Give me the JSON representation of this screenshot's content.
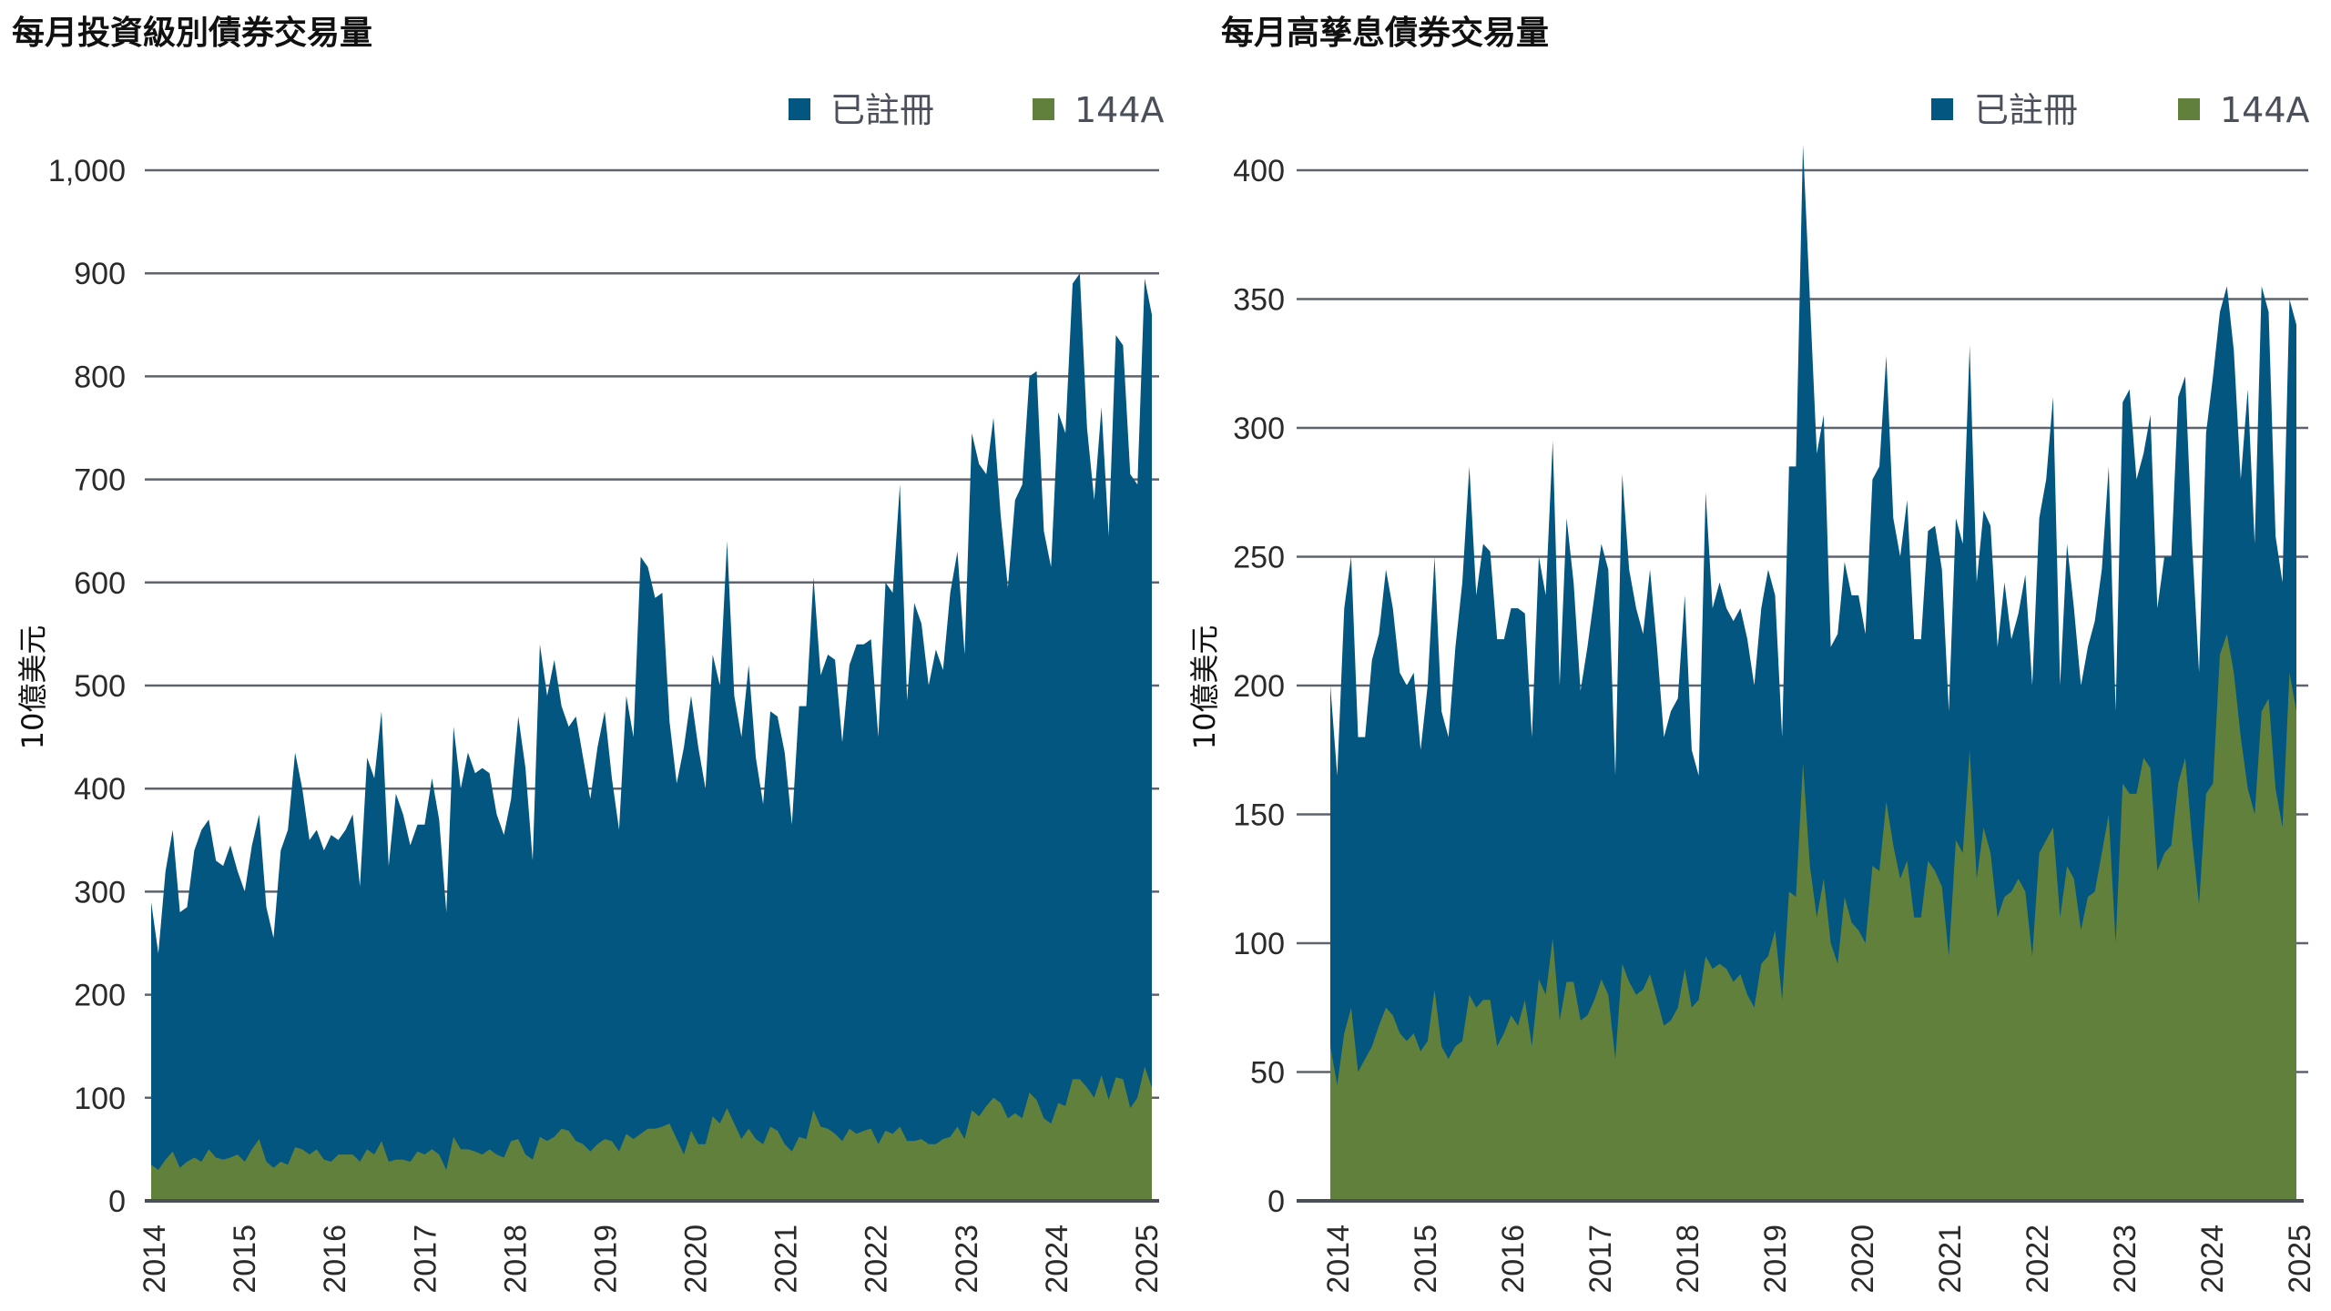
{
  "colors": {
    "registered": "#02567f",
    "a144": "#61803b",
    "grid": "#5f636b"
  },
  "chart_data": [
    {
      "type": "area",
      "stacked": true,
      "title": "每月投資級別債券交易量",
      "ylabel": "10億美元",
      "ylim": [
        0,
        1000
      ],
      "yticks": [
        0,
        100,
        200,
        300,
        400,
        500,
        600,
        700,
        800,
        900,
        1000
      ],
      "ytick_labels": [
        "0",
        "100",
        "200",
        "300",
        "400",
        "500",
        "600",
        "700",
        "800",
        "900",
        "1,000"
      ],
      "xtick_labels": [
        "2014",
        "2015",
        "2016",
        "2017",
        "2018",
        "2019",
        "2020",
        "2021",
        "2022",
        "2023",
        "2024",
        "2025"
      ],
      "frequency": "monthly",
      "grid": true,
      "legend_position": "top-right",
      "series": [
        {
          "name": "已註冊",
          "color": "#02567f",
          "values": [
            255,
            210,
            280,
            312,
            248,
            247,
            298,
            322,
            320,
            288,
            285,
            303,
            275,
            262,
            295,
            315,
            247,
            223,
            302,
            325,
            383,
            350,
            305,
            310,
            300,
            317,
            305,
            315,
            330,
            267,
            380,
            365,
            417,
            287,
            355,
            335,
            307,
            317,
            320,
            360,
            325,
            250,
            398,
            350,
            385,
            367,
            375,
            365,
            330,
            313,
            332,
            410,
            375,
            290,
            478,
            432,
            463,
            410,
            392,
            412,
            375,
            342,
            385,
            415,
            352,
            312,
            425,
            390,
            560,
            545,
            515,
            518,
            390,
            345,
            395,
            422,
            385,
            345,
            448,
            425,
            550,
            415,
            390,
            450,
            370,
            330,
            403,
            402,
            380,
            317,
            418,
            420,
            517,
            438,
            460,
            460,
            387,
            450,
            475,
            472,
            475,
            395,
            532,
            525,
            623,
            427,
            522,
            500,
            445,
            480,
            455,
            528,
            558,
            470,
            657,
            633,
            613,
            660,
            570,
            515,
            595,
            615,
            695,
            707,
            570,
            540,
            670,
            653,
            772,
            782,
            640,
            580,
            648,
            547,
            720,
            712,
            615,
            595,
            765,
            750
          ]
        },
        {
          "name": "144A",
          "color": "#61803b",
          "values": [
            35,
            30,
            40,
            48,
            32,
            38,
            42,
            38,
            50,
            42,
            40,
            42,
            45,
            38,
            50,
            60,
            38,
            32,
            38,
            35,
            52,
            50,
            45,
            50,
            40,
            38,
            45,
            45,
            45,
            38,
            50,
            45,
            58,
            38,
            40,
            40,
            38,
            48,
            45,
            50,
            45,
            30,
            62,
            50,
            50,
            48,
            45,
            50,
            45,
            42,
            58,
            60,
            45,
            40,
            62,
            58,
            62,
            70,
            68,
            58,
            55,
            48,
            55,
            60,
            58,
            48,
            65,
            60,
            65,
            70,
            70,
            72,
            75,
            60,
            45,
            68,
            55,
            55,
            82,
            75,
            90,
            75,
            60,
            70,
            60,
            55,
            72,
            68,
            55,
            48,
            62,
            60,
            88,
            72,
            70,
            65,
            58,
            70,
            65,
            68,
            70,
            55,
            68,
            65,
            72,
            58,
            58,
            60,
            55,
            55,
            60,
            62,
            72,
            60,
            88,
            82,
            92,
            100,
            95,
            80,
            85,
            80,
            105,
            98,
            80,
            75,
            95,
            92,
            118,
            118,
            110,
            100,
            122,
            98,
            120,
            118,
            90,
            100,
            130,
            110
          ]
        }
      ]
    },
    {
      "type": "area",
      "stacked": true,
      "title": "每月高孳息債券交易量",
      "ylabel": "10億美元",
      "ylim": [
        0,
        400
      ],
      "yticks": [
        0,
        50,
        100,
        150,
        200,
        250,
        300,
        350,
        400
      ],
      "ytick_labels": [
        "0",
        "50",
        "100",
        "150",
        "200",
        "250",
        "300",
        "350",
        "400"
      ],
      "xtick_labels": [
        "2014",
        "2015",
        "2016",
        "2017",
        "2018",
        "2019",
        "2020",
        "2021",
        "2022",
        "2023",
        "2024",
        "2025"
      ],
      "frequency": "monthly",
      "grid": true,
      "legend_position": "top-right",
      "series": [
        {
          "name": "已註冊",
          "color": "#02567f",
          "values": [
            140,
            120,
            165,
            175,
            130,
            125,
            150,
            152,
            170,
            158,
            140,
            138,
            140,
            117,
            138,
            168,
            130,
            125,
            155,
            178,
            205,
            160,
            177,
            174,
            158,
            153,
            158,
            162,
            150,
            120,
            164,
            155,
            193,
            130,
            180,
            155,
            128,
            143,
            157,
            169,
            165,
            110,
            190,
            160,
            150,
            138,
            157,
            137,
            112,
            120,
            120,
            145,
            100,
            87,
            180,
            140,
            148,
            140,
            140,
            142,
            138,
            125,
            138,
            150,
            130,
            102,
            165,
            167,
            240,
            220,
            180,
            180,
            115,
            128,
            130,
            127,
            130,
            120,
            150,
            157,
            173,
            127,
            125,
            140,
            108,
            108,
            128,
            134,
            123,
            95,
            125,
            120,
            157,
            115,
            123,
            127,
            105,
            122,
            98,
            103,
            123,
            105,
            130,
            140,
            167,
            90,
            125,
            105,
            95,
            97,
            105,
            110,
            135,
            90,
            148,
            157,
            122,
            118,
            137,
            102,
            115,
            112,
            150,
            148,
            115,
            90,
            140,
            158,
            133,
            135,
            125,
            100,
            155,
            105,
            165,
            150,
            98,
            95,
            145,
            150
          ]
        },
        {
          "name": "144A",
          "color": "#61803b",
          "values": [
            60,
            45,
            65,
            75,
            50,
            55,
            60,
            68,
            75,
            72,
            65,
            62,
            65,
            58,
            62,
            82,
            60,
            55,
            60,
            62,
            80,
            75,
            78,
            78,
            60,
            65,
            72,
            68,
            78,
            60,
            86,
            80,
            102,
            70,
            85,
            85,
            70,
            72,
            78,
            86,
            80,
            55,
            92,
            85,
            80,
            82,
            88,
            78,
            68,
            70,
            75,
            90,
            75,
            78,
            95,
            90,
            92,
            90,
            85,
            88,
            80,
            75,
            92,
            95,
            105,
            78,
            120,
            118,
            170,
            130,
            110,
            125,
            100,
            92,
            118,
            108,
            105,
            100,
            130,
            128,
            155,
            138,
            125,
            132,
            110,
            110,
            132,
            128,
            122,
            95,
            140,
            135,
            175,
            125,
            145,
            135,
            110,
            118,
            120,
            125,
            120,
            95,
            135,
            140,
            145,
            110,
            130,
            125,
            105,
            118,
            120,
            135,
            150,
            100,
            162,
            158,
            158,
            172,
            168,
            128,
            135,
            138,
            162,
            172,
            140,
            115,
            158,
            162,
            212,
            220,
            205,
            180,
            160,
            150,
            190,
            195,
            160,
            145,
            205,
            190
          ]
        }
      ]
    }
  ]
}
